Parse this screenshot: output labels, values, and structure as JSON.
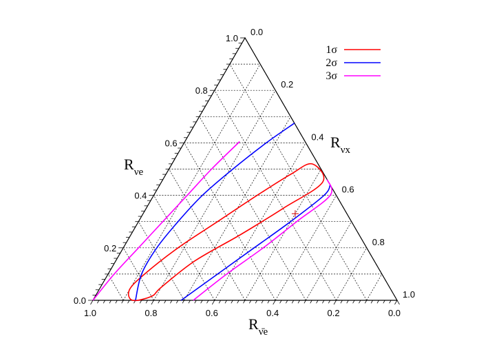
{
  "chart_data": {
    "type": "ternary-contour",
    "axes": {
      "left": {
        "label_base": "R",
        "label_sub": "νe",
        "ticks": [
          "0.0",
          "0.2",
          "0.4",
          "0.6",
          "0.8",
          "1.0"
        ]
      },
      "right": {
        "label_base": "R",
        "label_sub": "νx",
        "ticks": [
          "0.0",
          "0.2",
          "0.4",
          "0.6",
          "0.8",
          "1.0"
        ]
      },
      "bottom": {
        "label_base": "R",
        "label_sub": "ν̄e",
        "ticks": [
          "1.0",
          "0.8",
          "0.6",
          "0.4",
          "0.2",
          "0.0"
        ]
      }
    },
    "grid": true,
    "grid_step": 0.1,
    "best_fit": {
      "R_nue": 0.33,
      "R_nux": 0.5,
      "R_nuebar": 0.17
    },
    "series": [
      {
        "name": "1σ",
        "color": "#ff0000",
        "closed": true,
        "points": [
          {
            "R_nue": 0.015,
            "R_nux": 0.185
          },
          {
            "R_nue": 0.05,
            "R_nux": 0.2
          },
          {
            "R_nue": 0.15,
            "R_nux": 0.26
          },
          {
            "R_nue": 0.25,
            "R_nux": 0.36
          },
          {
            "R_nue": 0.35,
            "R_nux": 0.45
          },
          {
            "R_nue": 0.45,
            "R_nux": 0.53
          },
          {
            "R_nue": 0.52,
            "R_nux": 0.46
          },
          {
            "R_nue": 0.48,
            "R_nux": 0.41
          },
          {
            "R_nue": 0.4,
            "R_nux": 0.34
          },
          {
            "R_nue": 0.3,
            "R_nux": 0.26
          },
          {
            "R_nue": 0.2,
            "R_nux": 0.18
          },
          {
            "R_nue": 0.1,
            "R_nux": 0.12
          },
          {
            "R_nue": 0.04,
            "R_nux": 0.1
          },
          {
            "R_nue": 0.0,
            "R_nux": 0.13
          }
        ]
      },
      {
        "name": "2σ",
        "color": "#0000ff",
        "closed": false,
        "segments": [
          [
            {
              "R_nue": 0.0,
              "R_nux": 0.14
            },
            {
              "R_nue": 0.1,
              "R_nux": 0.11
            },
            {
              "R_nue": 0.2,
              "R_nux": 0.11
            },
            {
              "R_nue": 0.3,
              "R_nux": 0.13
            },
            {
              "R_nue": 0.4,
              "R_nux": 0.16
            },
            {
              "R_nue": 0.5,
              "R_nux": 0.21
            },
            {
              "R_nue": 0.6,
              "R_nux": 0.27
            },
            {
              "R_nue": 0.675,
              "R_nux": 0.325
            }
          ],
          [
            {
              "R_nue": 0.0,
              "R_nux": 0.29
            },
            {
              "R_nue": 0.1,
              "R_nux": 0.36
            },
            {
              "R_nue": 0.2,
              "R_nux": 0.43
            },
            {
              "R_nue": 0.3,
              "R_nux": 0.5
            },
            {
              "R_nue": 0.4,
              "R_nux": 0.56
            },
            {
              "R_nue": 0.44,
              "R_nux": 0.56
            }
          ]
        ]
      },
      {
        "name": "3σ",
        "color": "#ff00ff",
        "closed": false,
        "segments": [
          [
            {
              "R_nue": 0.0,
              "R_nux": 0.0
            },
            {
              "R_nue": 0.1,
              "R_nux": 0.02
            },
            {
              "R_nue": 0.2,
              "R_nux": 0.05
            },
            {
              "R_nue": 0.3,
              "R_nux": 0.08
            },
            {
              "R_nue": 0.4,
              "R_nux": 0.11
            },
            {
              "R_nue": 0.5,
              "R_nux": 0.14
            },
            {
              "R_nue": 0.605,
              "R_nux": 0.18
            }
          ],
          [
            {
              "R_nue": 0.0,
              "R_nux": 0.33
            },
            {
              "R_nue": 0.1,
              "R_nux": 0.39
            },
            {
              "R_nue": 0.2,
              "R_nux": 0.46
            },
            {
              "R_nue": 0.3,
              "R_nux": 0.52
            },
            {
              "R_nue": 0.4,
              "R_nux": 0.58
            },
            {
              "R_nue": 0.46,
              "R_nux": 0.54
            }
          ]
        ]
      }
    ],
    "legend": {
      "placement": "top-right",
      "entries": [
        {
          "label": "1σ",
          "color": "#ff0000"
        },
        {
          "label": "2σ",
          "color": "#0000ff"
        },
        {
          "label": "3σ",
          "color": "#ff00ff"
        }
      ]
    }
  }
}
